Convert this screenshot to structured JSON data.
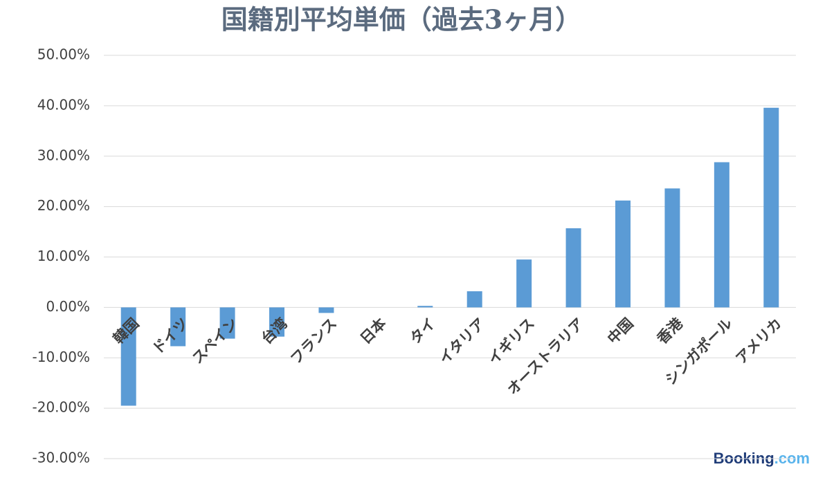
{
  "chart_data": {
    "type": "bar",
    "title": "国籍別平均単価（過去3ヶ月）",
    "categories": [
      "韓国",
      "ドイツ",
      "スペイン",
      "台湾",
      "フランス",
      "日本",
      "タイ",
      "イタリア",
      "イギリス",
      "オーストラリア",
      "中国",
      "香港",
      "シンガポール",
      "アメリカ"
    ],
    "values": [
      -19.5,
      -7.7,
      -6.2,
      -5.8,
      -1.1,
      0,
      0.3,
      3.2,
      9.5,
      15.7,
      21.2,
      23.6,
      28.8,
      39.6
    ],
    "color": "#5b9bd5",
    "ylim": [
      -30,
      50
    ],
    "yticks": [
      {
        "value": -30,
        "label": "-30.00%"
      },
      {
        "value": -20,
        "label": "-20.00%"
      },
      {
        "value": -10,
        "label": "-10.00%"
      },
      {
        "value": 0,
        "label": "0.00%"
      },
      {
        "value": 10,
        "label": "10.00%"
      },
      {
        "value": 20,
        "label": "20.00%"
      },
      {
        "value": 30,
        "label": "30.00%"
      },
      {
        "value": 40,
        "label": "40.00%"
      },
      {
        "value": 50,
        "label": "50.00%"
      }
    ],
    "grid": true
  },
  "logo": {
    "main": "Booking",
    "suffix": ".com"
  }
}
